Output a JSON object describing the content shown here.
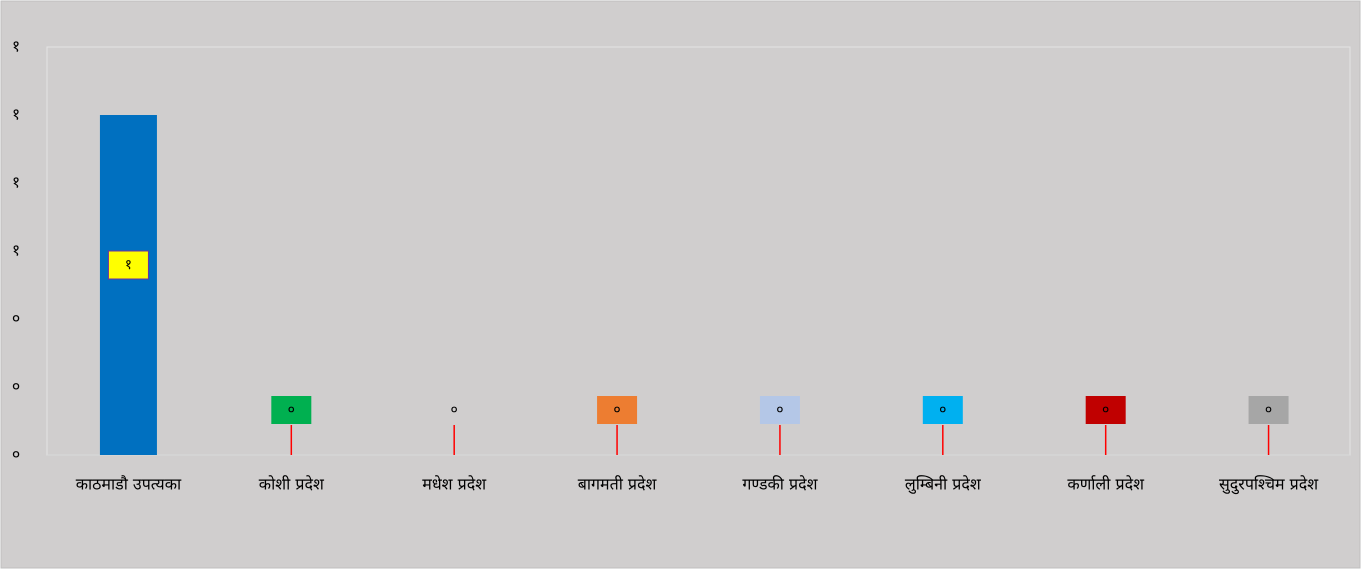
{
  "chart_data": {
    "type": "bar",
    "categories": [
      "काठमाडौ उपत्यका",
      "कोशी प्रदेश",
      "मधेश प्रदेश",
      "बागमती प्रदेश",
      "गण्डकी प्रदेश",
      "लुम्बिनी प्रदेश",
      "कर्णाली प्रदेश",
      "सुदुरपश्चिम प्रदेश"
    ],
    "values": [
      1,
      0,
      0,
      0,
      0,
      0,
      0,
      0
    ],
    "value_labels": [
      "१",
      "०",
      "०",
      "०",
      "०",
      "०",
      "०",
      "०"
    ],
    "color": "#0070c0",
    "label_colors": [
      "#ffff00",
      "#00b050",
      null,
      "#ed7d31",
      "#b4c7e7",
      "#00b0f0",
      "#c00000",
      "#a6a6a6"
    ],
    "ylim": [
      0,
      1.2
    ],
    "yticks": [
      {
        "value": 0,
        "label": "०"
      },
      {
        "value": 0.2,
        "label": "०"
      },
      {
        "value": 0.4,
        "label": "०"
      },
      {
        "value": 0.6,
        "label": "१"
      },
      {
        "value": 0.8,
        "label": "१"
      },
      {
        "value": 1.0,
        "label": "१"
      },
      {
        "value": 1.2,
        "label": "१"
      }
    ],
    "grid": false
  }
}
